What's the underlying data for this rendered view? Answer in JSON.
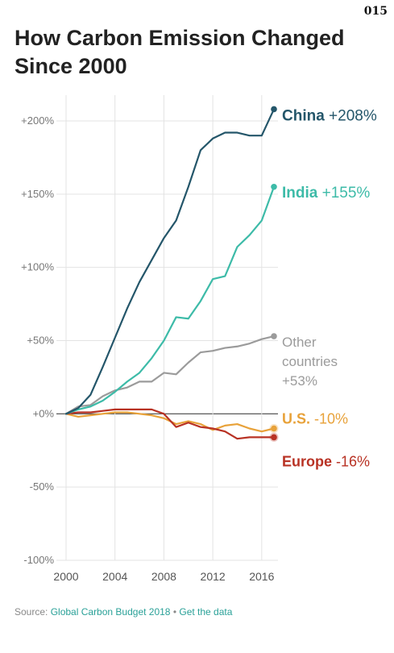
{
  "page_number": "015",
  "title": "How Carbon Emission Changed Since 2000",
  "source": {
    "prefix": "Source: ",
    "link_text": "Global Carbon Budget 2018",
    "separator": " • ",
    "data_link": "Get the data"
  },
  "colors": {
    "China": "#24566a",
    "India": "#3dbba8",
    "Other countries": "#9b9b9b",
    "U.S.": "#e8a23a",
    "Europe": "#b83224"
  },
  "chart_data": {
    "type": "line",
    "title": "How Carbon Emission Changed Since 2000",
    "xlabel": "",
    "ylabel": "",
    "xlim": [
      2000,
      2017
    ],
    "ylim": [
      -100,
      200
    ],
    "x_ticks": [
      2000,
      2004,
      2008,
      2012,
      2016
    ],
    "y_ticks": [
      {
        "value": 200,
        "label": "+200%"
      },
      {
        "value": 150,
        "label": "+150%"
      },
      {
        "value": 100,
        "label": "+100%"
      },
      {
        "value": 50,
        "label": "+50%"
      },
      {
        "value": 0,
        "label": "+0%"
      },
      {
        "value": -50,
        "label": "-50%"
      },
      {
        "value": -100,
        "label": "-100%"
      }
    ],
    "grid": true,
    "x": [
      2000,
      2001,
      2002,
      2003,
      2004,
      2005,
      2006,
      2007,
      2008,
      2009,
      2010,
      2011,
      2012,
      2013,
      2014,
      2015,
      2016,
      2017
    ],
    "series": [
      {
        "name": "China",
        "end_label": "China",
        "end_value_label": "+208%",
        "values": [
          0,
          4,
          13,
          32,
          52,
          72,
          90,
          105,
          120,
          132,
          155,
          180,
          188,
          192,
          192,
          190,
          190,
          208
        ]
      },
      {
        "name": "India",
        "end_label": "India",
        "end_value_label": "+155%",
        "values": [
          0,
          3,
          5,
          9,
          15,
          22,
          28,
          38,
          50,
          66,
          65,
          77,
          92,
          94,
          114,
          122,
          132,
          155
        ]
      },
      {
        "name": "Other countries",
        "end_label": "Other countries",
        "end_value_label": "+53%",
        "values": [
          0,
          5,
          6,
          12,
          16,
          18,
          22,
          22,
          28,
          27,
          35,
          42,
          43,
          45,
          46,
          48,
          51,
          53
        ]
      },
      {
        "name": "U.S.",
        "end_label": "U.S.",
        "end_value_label": "-10%",
        "values": [
          0,
          -2,
          -1,
          0,
          1,
          1,
          0,
          -1,
          -3,
          -7,
          -5,
          -7,
          -11,
          -8,
          -7,
          -10,
          -12,
          -10
        ]
      },
      {
        "name": "Europe",
        "end_label": "Europe",
        "end_value_label": "-16%",
        "values": [
          0,
          1,
          1,
          2,
          3,
          3,
          3,
          3,
          0,
          -9,
          -6,
          -9,
          -10,
          -12,
          -17,
          -16,
          -16,
          -16
        ]
      }
    ]
  }
}
